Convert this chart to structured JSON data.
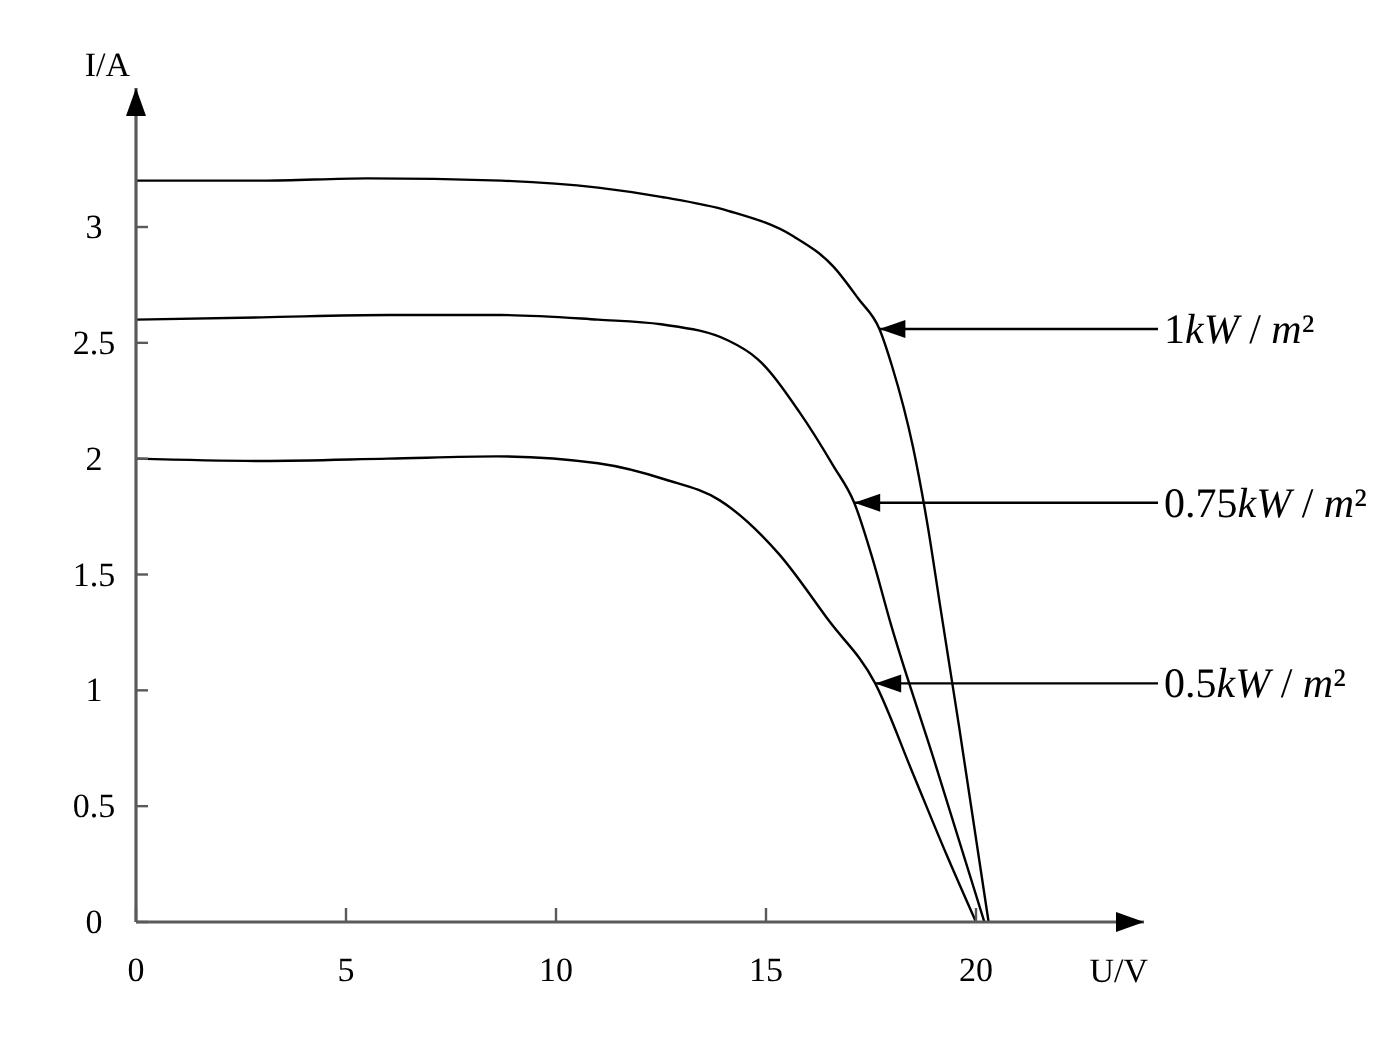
{
  "chart_data": {
    "type": "line",
    "xlabel": "U/V",
    "ylabel": "I/A",
    "xlim": [
      0,
      24
    ],
    "xticks": [
      0,
      5,
      10,
      15,
      20
    ],
    "ylim": [
      0,
      3.6
    ],
    "yticks": [
      0,
      0.5,
      1,
      1.5,
      2,
      2.5,
      3
    ],
    "marker": "none",
    "line_style": "solid",
    "series": [
      {
        "color": "#000000",
        "x": [
          0,
          3,
          5.5,
          8.7,
          11,
          12.5,
          14.1,
          15.65,
          16.6,
          17.2,
          17.7,
          18,
          18.5,
          18.85,
          19.15,
          19.6,
          20.3
        ],
        "values": [
          3.2,
          3.2,
          3.21,
          3.2,
          3.17,
          3.13,
          3.07,
          2.96,
          2.83,
          2.69,
          2.56,
          2.4,
          2.05,
          1.71,
          1.36,
          0.84,
          0
        ]
      },
      {
        "color": "#000000",
        "x": [
          0,
          3,
          6,
          8.7,
          11,
          12.5,
          14.1,
          14.8,
          15.8,
          16.6,
          17.1,
          17.55,
          17.95,
          19,
          20.2
        ],
        "values": [
          2.6,
          2.61,
          2.62,
          2.62,
          2.6,
          2.58,
          2.51,
          2.43,
          2.2,
          1.97,
          1.81,
          1.56,
          1.3,
          0.7,
          0
        ]
      },
      {
        "color": "#000000",
        "x": [
          0,
          3,
          6,
          8.6,
          11,
          12.6,
          13.9,
          15.3,
          16.5,
          17.6,
          18.5,
          19.3,
          20
        ],
        "values": [
          2,
          1.99,
          2,
          2.01,
          1.98,
          1.91,
          1.82,
          1.59,
          1.3,
          1.03,
          0.64,
          0.29,
          0
        ]
      }
    ],
    "annotations": [
      {
        "text": "1kW / m²",
        "x": 17.7,
        "y": 2.56
      },
      {
        "text": "0.75kW / m²",
        "x": 17.1,
        "y": 1.81
      },
      {
        "text": "0.5kW / m²",
        "x": 17.6,
        "y": 1.03
      }
    ]
  }
}
